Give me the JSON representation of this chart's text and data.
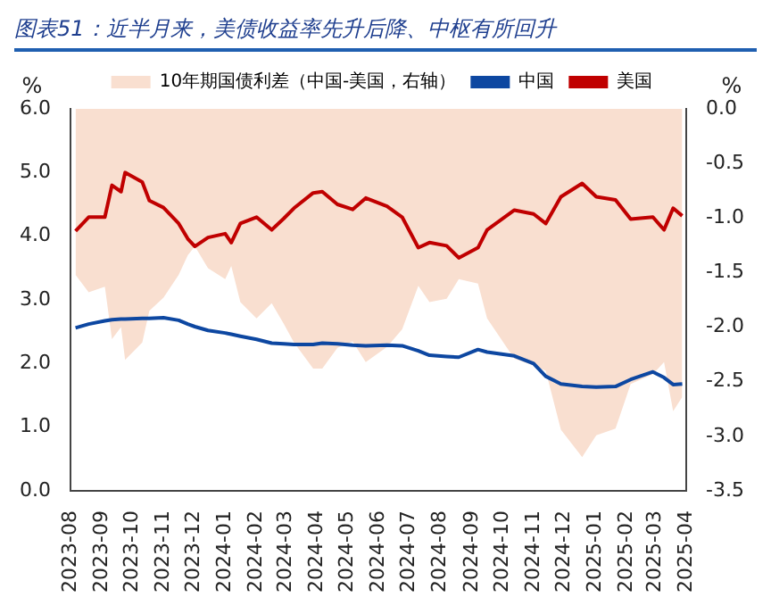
{
  "chart_data": {
    "type": "line",
    "title": "图表51：近半月来，美债收益率先升后降、中枢有所回升",
    "ylabel": "%",
    "y2label": "%",
    "x": [
      "2023-08-06",
      "2023-08-19",
      "2023-09-04",
      "2023-09-11",
      "2023-09-20",
      "2023-09-24",
      "2023-10-11",
      "2023-10-18",
      "2023-11-01",
      "2023-11-16",
      "2023-11-25",
      "2023-12-02",
      "2023-12-15",
      "2024-01-01",
      "2024-01-07",
      "2024-01-16",
      "2024-02-01",
      "2024-02-16",
      "2024-02-28",
      "2024-03-09",
      "2024-03-28",
      "2024-04-06",
      "2024-04-21",
      "2024-05-06",
      "2024-05-19",
      "2024-06-09",
      "2024-06-24",
      "2024-07-10",
      "2024-07-21",
      "2024-08-07",
      "2024-08-19",
      "2024-09-07",
      "2024-09-16",
      "2024-10-13",
      "2024-11-01",
      "2024-11-13",
      "2024-11-28",
      "2024-12-19",
      "2025-01-02",
      "2025-01-21",
      "2025-02-05",
      "2025-02-27",
      "2025-03-10",
      "2025-03-19",
      "2025-03-28"
    ],
    "series": [
      {
        "name": "10年期国债利差（中国-美国，右轴）",
        "type": "area",
        "axis": "y2",
        "color": "#f9dfd0",
        "values": [
          -1.52,
          -1.68,
          -1.63,
          -2.11,
          -2.0,
          -2.3,
          -2.14,
          -1.85,
          -1.73,
          -1.52,
          -1.34,
          -1.26,
          -1.46,
          -1.56,
          -1.44,
          -1.77,
          -1.92,
          -1.78,
          -1.97,
          -2.14,
          -2.38,
          -2.38,
          -2.19,
          -2.13,
          -2.32,
          -2.18,
          -2.02,
          -1.62,
          -1.77,
          -1.74,
          -1.56,
          -1.6,
          -1.92,
          -2.29,
          -2.35,
          -2.4,
          -2.94,
          -3.19,
          -2.99,
          -2.93,
          -2.52,
          -2.43,
          -2.32,
          -2.77,
          -2.64
        ]
      },
      {
        "name": "中国",
        "type": "line",
        "color": "#0d47a1",
        "values": [
          2.56,
          2.62,
          2.67,
          2.69,
          2.7,
          2.7,
          2.71,
          2.71,
          2.72,
          2.68,
          2.62,
          2.58,
          2.52,
          2.48,
          2.46,
          2.43,
          2.38,
          2.32,
          2.31,
          2.3,
          2.3,
          2.32,
          2.31,
          2.29,
          2.28,
          2.29,
          2.28,
          2.2,
          2.13,
          2.11,
          2.1,
          2.22,
          2.18,
          2.12,
          2.0,
          1.8,
          1.68,
          1.64,
          1.63,
          1.64,
          1.75,
          1.87,
          1.78,
          1.67,
          1.68
        ]
      },
      {
        "name": "美国",
        "type": "line",
        "color": "#c00000",
        "values": [
          4.08,
          4.3,
          4.3,
          4.8,
          4.7,
          5.0,
          4.85,
          4.56,
          4.45,
          4.2,
          3.96,
          3.84,
          3.98,
          4.04,
          3.9,
          4.2,
          4.3,
          4.1,
          4.28,
          4.44,
          4.68,
          4.7,
          4.5,
          4.42,
          4.6,
          4.47,
          4.3,
          3.82,
          3.9,
          3.85,
          3.66,
          3.82,
          4.1,
          4.41,
          4.35,
          4.2,
          4.62,
          4.83,
          4.62,
          4.57,
          4.27,
          4.3,
          4.1,
          4.44,
          4.32
        ]
      }
    ],
    "xlim": [
      "2023-08",
      "2025-04"
    ],
    "xticks": [
      "2023-08",
      "2023-09",
      "2023-10",
      "2023-11",
      "2023-12",
      "2024-01",
      "2024-02",
      "2024-03",
      "2024-04",
      "2024-05",
      "2024-06",
      "2024-07",
      "2024-08",
      "2024-09",
      "2024-10",
      "2024-11",
      "2024-12",
      "2025-01",
      "2025-02",
      "2025-03",
      "2025-04"
    ],
    "ylim": [
      0,
      6
    ],
    "yticks": [
      {
        "value": 0,
        "label": "0.0"
      },
      {
        "value": 1,
        "label": "1.0"
      },
      {
        "value": 2,
        "label": "2.0"
      },
      {
        "value": 3,
        "label": "3.0"
      },
      {
        "value": 4,
        "label": "4.0"
      },
      {
        "value": 5,
        "label": "5.0"
      },
      {
        "value": 6,
        "label": "6.0"
      }
    ],
    "y2lim": [
      -3.5,
      0
    ],
    "y2ticks": [
      {
        "value": -3.5,
        "label": "-3.5"
      },
      {
        "value": -3,
        "label": "-3.0"
      },
      {
        "value": -2.5,
        "label": "-2.5"
      },
      {
        "value": -2,
        "label": "-2.0"
      },
      {
        "value": -1.5,
        "label": "-1.5"
      },
      {
        "value": -1,
        "label": "-1.0"
      },
      {
        "value": -0.5,
        "label": "-0.5"
      },
      {
        "value": 0,
        "label": "0.0"
      }
    ],
    "grid": false,
    "legend": "top",
    "marker": "none",
    "line_style": "solid"
  }
}
